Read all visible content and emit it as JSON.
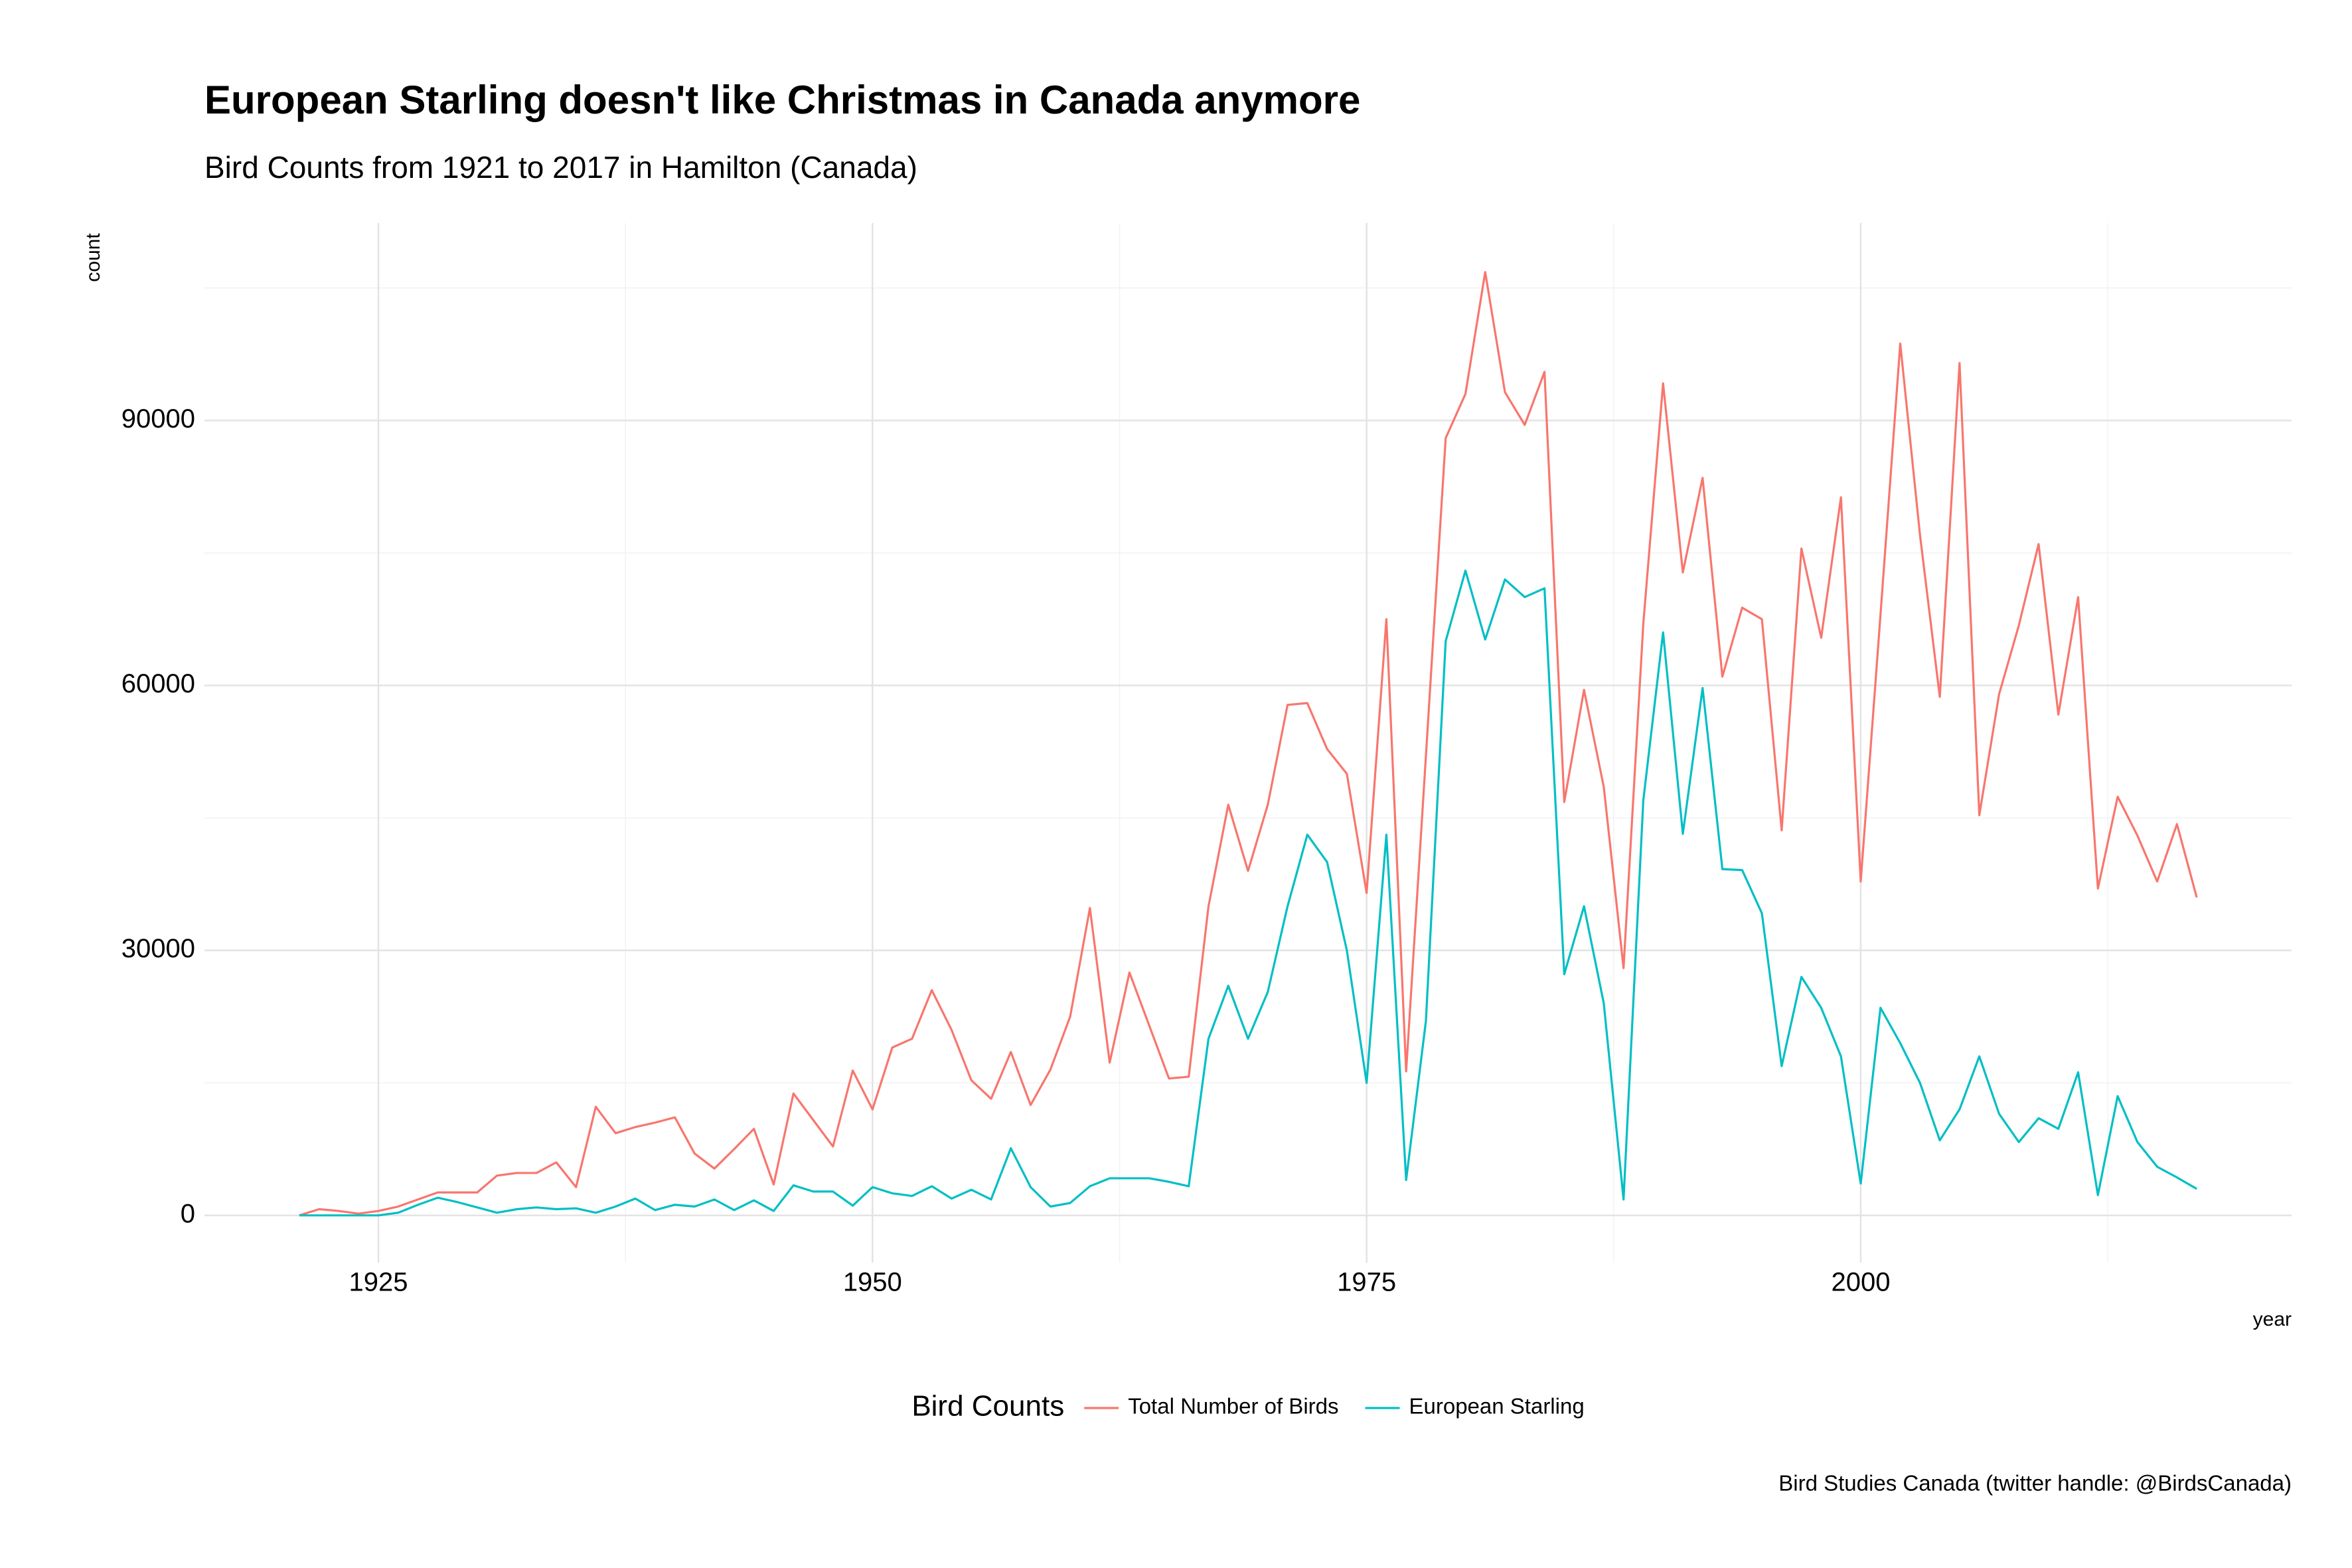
{
  "chart_data": {
    "type": "line",
    "title": "European Starling doesn't like Christmas in Canada anymore",
    "subtitle": "Bird Counts from 1921 to 2017 in Hamilton (Canada)",
    "caption": "Bird Studies Canada (twitter handle: @BirdsCanada)",
    "x_label": "year",
    "y_label": "count",
    "legend_title": "Bird Counts",
    "x": [
      1921,
      1922,
      1923,
      1924,
      1925,
      1926,
      1927,
      1928,
      1929,
      1930,
      1931,
      1932,
      1933,
      1934,
      1935,
      1936,
      1937,
      1938,
      1939,
      1940,
      1941,
      1942,
      1943,
      1944,
      1945,
      1946,
      1947,
      1948,
      1949,
      1950,
      1951,
      1952,
      1953,
      1954,
      1955,
      1956,
      1957,
      1958,
      1959,
      1960,
      1961,
      1962,
      1963,
      1964,
      1965,
      1966,
      1967,
      1968,
      1969,
      1970,
      1971,
      1972,
      1973,
      1974,
      1975,
      1976,
      1977,
      1978,
      1979,
      1980,
      1981,
      1982,
      1983,
      1984,
      1985,
      1986,
      1987,
      1988,
      1989,
      1990,
      1991,
      1992,
      1993,
      1994,
      1995,
      1996,
      1997,
      1998,
      1999,
      2000,
      2001,
      2002,
      2003,
      2004,
      2005,
      2006,
      2007,
      2008,
      2009,
      2010,
      2011,
      2012,
      2013,
      2014,
      2015,
      2016,
      2017
    ],
    "series": [
      {
        "name": "Total Number of Birds",
        "color": "#F8766D",
        "values": [
          0,
          700,
          500,
          200,
          500,
          1000,
          1800,
          2600,
          2600,
          2600,
          4500,
          4800,
          4800,
          6000,
          3200,
          12300,
          9300,
          10000,
          10500,
          11100,
          7000,
          5300,
          7500,
          9800,
          3500,
          13800,
          10800,
          7800,
          16400,
          12000,
          19000,
          20000,
          25500,
          21000,
          15300,
          13200,
          18500,
          12500,
          16500,
          22500,
          34800,
          17300,
          27500,
          21500,
          15500,
          15700,
          35000,
          46500,
          39000,
          46500,
          57800,
          58000,
          52800,
          50000,
          36500,
          67500,
          16300,
          52000,
          88000,
          93000,
          106800,
          93200,
          89500,
          95500,
          46800,
          59500,
          48500,
          28000,
          67000,
          94200,
          72800,
          83500,
          61000,
          68800,
          67500,
          43600,
          75500,
          65400,
          81300,
          37800,
          68000,
          98700,
          77000,
          58700,
          96500,
          45300,
          59000,
          66800,
          76000,
          56700,
          70000,
          37000,
          47400,
          43000,
          37800,
          44300,
          36000
        ]
      },
      {
        "name": "European Starling",
        "color": "#00BFC4",
        "values": [
          0,
          0,
          0,
          0,
          0,
          300,
          1200,
          2000,
          1500,
          900,
          300,
          700,
          900,
          700,
          800,
          300,
          1000,
          1900,
          600,
          1200,
          1000,
          1800,
          600,
          1700,
          500,
          3400,
          2700,
          2700,
          1100,
          3200,
          2500,
          2200,
          3300,
          1900,
          2900,
          1800,
          7600,
          3200,
          1000,
          1400,
          3300,
          4200,
          4200,
          4200,
          3800,
          3300,
          20000,
          26000,
          20000,
          25300,
          35000,
          43100,
          40000,
          30000,
          15000,
          43100,
          4000,
          22000,
          65000,
          73000,
          65200,
          72000,
          70000,
          71000,
          27300,
          35000,
          24000,
          1800,
          47000,
          66000,
          43200,
          59700,
          39200,
          39100,
          34200,
          16900,
          27000,
          23500,
          18000,
          3600,
          23500,
          19500,
          15000,
          8500,
          12000,
          18000,
          11500,
          8300,
          11000,
          9800,
          16200,
          2300,
          13500,
          8300,
          5500,
          4300,
          3000
        ]
      }
    ],
    "xlim": [
      1916.2,
      2021.8
    ],
    "ylim": [
      -5350,
      112350
    ],
    "xticks": [
      1925,
      1950,
      1975,
      2000
    ],
    "yticks": [
      0,
      30000,
      60000,
      90000
    ],
    "xminor": [
      1937.5,
      1962.5,
      1987.5,
      2012.5
    ],
    "yminor": [
      15000,
      45000,
      75000,
      105000
    ],
    "grid": true,
    "legend_position": "bottom"
  }
}
